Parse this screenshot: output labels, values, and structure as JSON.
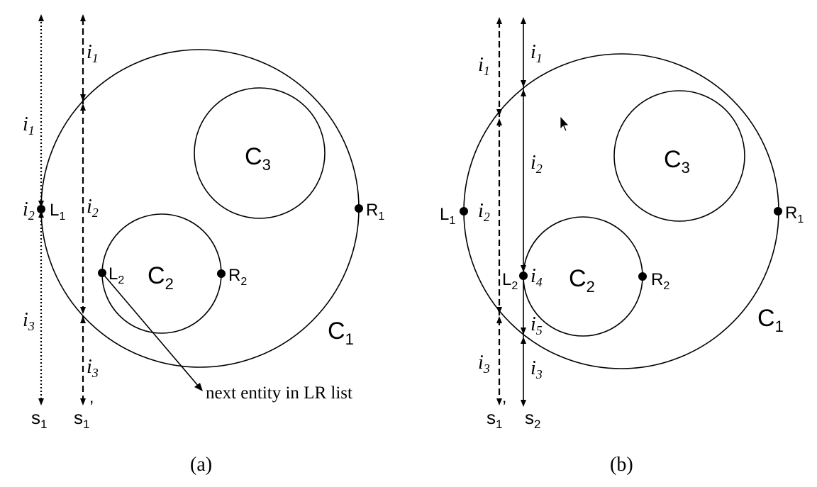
{
  "panel_a": {
    "caption": "(a)",
    "circles": {
      "c1": "C",
      "c1_sub": "1",
      "c2": "C",
      "c2_sub": "2",
      "c3": "C",
      "c3_sub": "3"
    },
    "points": {
      "l1": "L",
      "l1_sub": "1",
      "r1": "R",
      "r1_sub": "1",
      "l2": "L",
      "l2_sub": "2",
      "r2": "R",
      "r2_sub": "2"
    },
    "ray_s1": {
      "label": "s",
      "sub": "1",
      "i1": "i",
      "i1_sub": "1",
      "i2": "i",
      "i2_sub": "2",
      "i3": "i",
      "i3_sub": "3"
    },
    "ray_s1p": {
      "label": "s",
      "sub": "1",
      "prime": "’",
      "i1": "i",
      "i1_sub": "1",
      "i2": "i",
      "i2_sub": "2",
      "i3": "i",
      "i3_sub": "3"
    },
    "annotation": "next entity in LR list"
  },
  "panel_b": {
    "caption": "(b)",
    "circles": {
      "c1": "C",
      "c1_sub": "1",
      "c2": "C",
      "c2_sub": "2",
      "c3": "C",
      "c3_sub": "3"
    },
    "points": {
      "l1": "L",
      "l1_sub": "1",
      "r1": "R",
      "r1_sub": "1",
      "l2": "L",
      "l2_sub": "2",
      "r2": "R",
      "r2_sub": "2"
    },
    "ray_s1p": {
      "label": "s",
      "sub": "1",
      "prime": "’",
      "i1": "i",
      "i1_sub": "1",
      "i2": "i",
      "i2_sub": "2",
      "i3": "i",
      "i3_sub": "3"
    },
    "ray_s2": {
      "label": "s",
      "sub": "2",
      "i1": "i",
      "i1_sub": "1",
      "i2": "i",
      "i2_sub": "2",
      "i4": "i",
      "i4_sub": "4",
      "i5": "i",
      "i5_sub": "5",
      "i3": "i",
      "i3_sub": "3"
    }
  },
  "icons": {
    "cursor": "mouse-pointer-icon"
  }
}
